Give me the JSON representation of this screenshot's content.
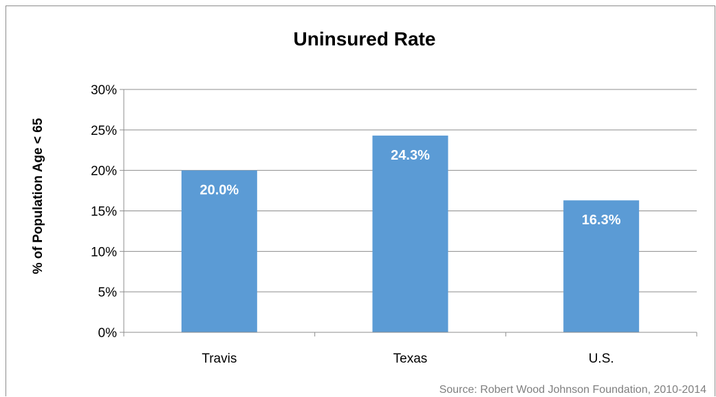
{
  "chart_data": {
    "type": "bar",
    "title": "Uninsured Rate",
    "ylabel": "% of Population  Age < 65",
    "xlabel": "",
    "categories": [
      "Travis",
      "Texas",
      "U.S."
    ],
    "values": [
      20.0,
      24.3,
      16.3
    ],
    "data_labels": [
      "20.0%",
      "24.3%",
      "16.3%"
    ],
    "ylim": [
      0,
      30
    ],
    "yticks": [
      0,
      5,
      10,
      15,
      20,
      25,
      30
    ],
    "ytick_labels": [
      "0%",
      "5%",
      "10%",
      "15%",
      "20%",
      "25%",
      "30%"
    ],
    "grid": true,
    "legend": "none",
    "bar_color": "#5b9bd5",
    "source": "Source: Robert Wood Johnson Foundation, 2010-2014"
  }
}
